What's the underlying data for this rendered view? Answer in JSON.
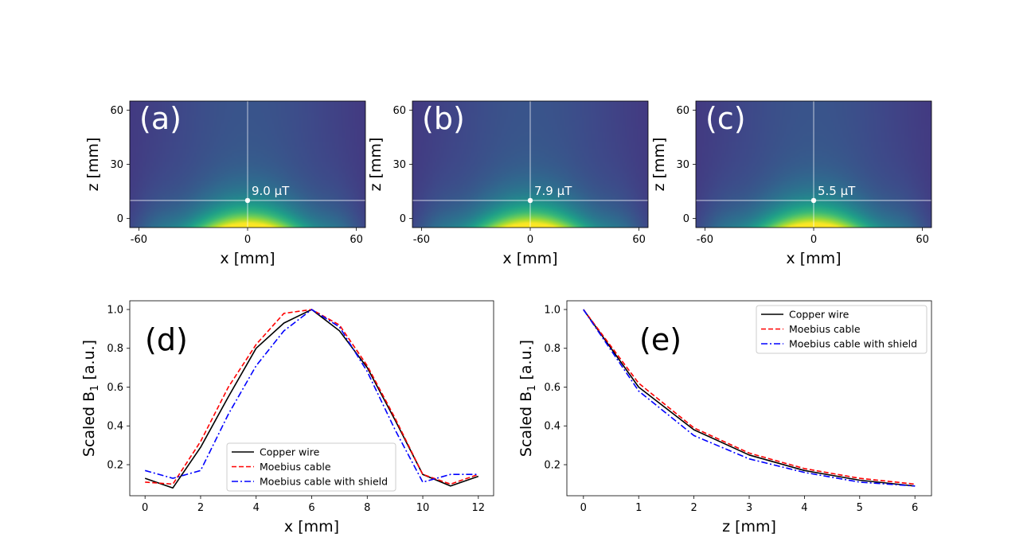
{
  "chart_data": [
    {
      "type": "heatmap",
      "panel_label": "(a)",
      "xlabel": "x [mm]",
      "ylabel": "z [mm]",
      "xlim": [
        -65,
        65
      ],
      "ylim": [
        -5,
        65
      ],
      "xticks": [
        -60,
        0,
        60
      ],
      "yticks": [
        0,
        30,
        60
      ],
      "marker": {
        "x": 0,
        "z": 10,
        "label": "9.0 μT"
      },
      "crosshair": {
        "x": 0,
        "z": 10
      },
      "colormap": "viridis"
    },
    {
      "type": "heatmap",
      "panel_label": "(b)",
      "xlabel": "x [mm]",
      "ylabel": "z [mm]",
      "xlim": [
        -65,
        65
      ],
      "ylim": [
        -5,
        65
      ],
      "xticks": [
        -60,
        0,
        60
      ],
      "yticks": [
        0,
        30,
        60
      ],
      "marker": {
        "x": 0,
        "z": 10,
        "label": "7.9 μT"
      },
      "crosshair": {
        "x": 0,
        "z": 10
      },
      "colormap": "viridis"
    },
    {
      "type": "heatmap",
      "panel_label": "(c)",
      "xlabel": "x [mm]",
      "ylabel": "z [mm]",
      "xlim": [
        -65,
        65
      ],
      "ylim": [
        -5,
        65
      ],
      "xticks": [
        -60,
        0,
        60
      ],
      "yticks": [
        0,
        30,
        60
      ],
      "marker": {
        "x": 0,
        "z": 10,
        "label": "5.5 μT"
      },
      "crosshair": {
        "x": 0,
        "z": 10
      },
      "colormap": "viridis"
    },
    {
      "type": "line",
      "panel_label": "(d)",
      "xlabel": "x [mm]",
      "ylabel": "Scaled B",
      "ylabel_sub": "1",
      "ylabel_suffix": " [a.u.]",
      "xlim": [
        -0.55,
        12.55
      ],
      "ylim": [
        0.04,
        1.045
      ],
      "xticks": [
        0,
        2,
        4,
        6,
        8,
        10,
        12
      ],
      "yticks": [
        0.2,
        0.4,
        0.6,
        0.8,
        1.0
      ],
      "legend": "lower-right",
      "x": [
        0,
        1,
        2,
        3,
        4,
        5,
        6,
        7,
        8,
        9,
        10,
        11,
        12
      ],
      "series": [
        {
          "name": "Copper wire",
          "color": "#000000",
          "dash": "solid",
          "values": [
            0.13,
            0.08,
            0.29,
            0.55,
            0.8,
            0.93,
            1.0,
            0.89,
            0.7,
            0.43,
            0.15,
            0.09,
            0.14
          ]
        },
        {
          "name": "Moebius cable",
          "color": "#ff0000",
          "dash": "dashed",
          "values": [
            0.11,
            0.1,
            0.32,
            0.6,
            0.82,
            0.98,
            1.0,
            0.92,
            0.71,
            0.44,
            0.15,
            0.1,
            0.15
          ]
        },
        {
          "name": "Moebius cable with shield",
          "color": "#0000ff",
          "dash": "dashdot",
          "values": [
            0.17,
            0.13,
            0.17,
            0.46,
            0.71,
            0.89,
            1.0,
            0.91,
            0.68,
            0.38,
            0.11,
            0.15,
            0.15
          ]
        }
      ]
    },
    {
      "type": "line",
      "panel_label": "(e)",
      "xlabel": "z [mm]",
      "ylabel": "Scaled B",
      "ylabel_sub": "1",
      "ylabel_suffix": " [a.u.]",
      "xlim": [
        -0.3,
        6.3
      ],
      "ylim": [
        0.04,
        1.045
      ],
      "xticks": [
        0,
        1,
        2,
        3,
        4,
        5,
        6
      ],
      "yticks": [
        0.2,
        0.4,
        0.6,
        0.8,
        1.0
      ],
      "legend": "upper-right",
      "x": [
        0,
        1,
        2,
        3,
        4,
        5,
        6
      ],
      "series": [
        {
          "name": "Copper wire",
          "color": "#000000",
          "dash": "solid",
          "values": [
            1.0,
            0.6,
            0.38,
            0.25,
            0.17,
            0.12,
            0.09
          ]
        },
        {
          "name": "Moebius cable",
          "color": "#ff0000",
          "dash": "dashed",
          "values": [
            1.0,
            0.62,
            0.39,
            0.26,
            0.18,
            0.13,
            0.1
          ]
        },
        {
          "name": "Moebius cable with shield",
          "color": "#0000ff",
          "dash": "dashdot",
          "values": [
            1.0,
            0.58,
            0.35,
            0.23,
            0.16,
            0.11,
            0.09
          ]
        }
      ]
    }
  ]
}
